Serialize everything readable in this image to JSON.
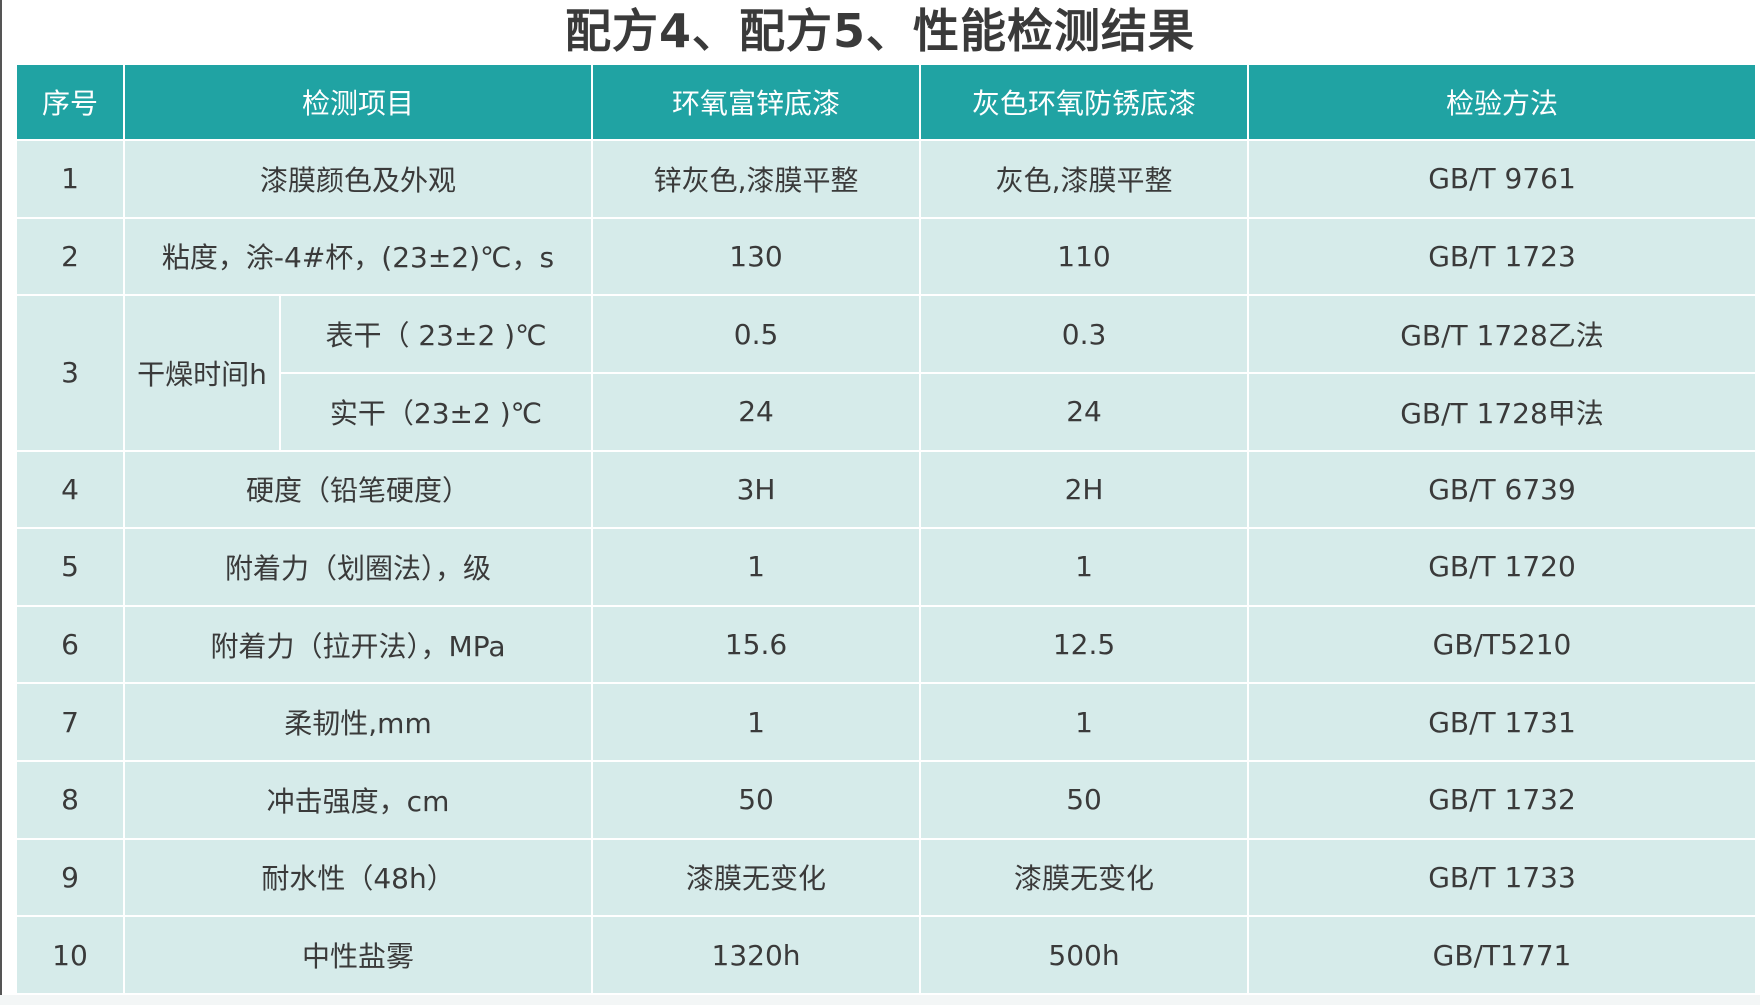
{
  "title": "配方4、配方5、性能检测结果",
  "headers": {
    "no": "序号",
    "item": "检测项目",
    "coat_a": "环氧富锌底漆",
    "coat_b": "灰色环氧防锈底漆",
    "method": "检验方法"
  },
  "rows": [
    {
      "no": "1",
      "item": "漆膜颜色及外观",
      "a": "锌灰色,漆膜平整",
      "b": "灰色,漆膜平整",
      "method": "GB/T 9761"
    },
    {
      "no": "2",
      "item": "粘度，涂-4#杯，(23±2)℃，s",
      "a": "130",
      "b": "110",
      "method": "GB/T 1723"
    },
    {
      "no": "3",
      "item": "干燥时间h",
      "sub1": "表干（ 23±2 )℃",
      "a1": "0.5",
      "b1": "0.3",
      "method1": "GB/T 1728乙法",
      "sub2": "实干（23±2 )℃",
      "a2": "24",
      "b2": "24",
      "method2": "GB/T 1728甲法"
    },
    {
      "no": "4",
      "item": "硬度（铅笔硬度）",
      "a": "3H",
      "b": "2H",
      "method": "GB/T 6739"
    },
    {
      "no": "5",
      "item": "附着力（划圈法），级",
      "a": "1",
      "b": "1",
      "method": "GB/T 1720"
    },
    {
      "no": "6",
      "item": "附着力（拉开法），MPa",
      "a": "15.6",
      "b": "12.5",
      "method": "GB/T5210"
    },
    {
      "no": "7",
      "item": "柔韧性,mm",
      "a": "1",
      "b": "1",
      "method": "GB/T 1731"
    },
    {
      "no": "8",
      "item": "冲击强度，cm",
      "a": "50",
      "b": "50",
      "method": "GB/T 1732"
    },
    {
      "no": "9",
      "item": "耐水性（48h）",
      "a": "漆膜无变化",
      "b": "漆膜无变化",
      "method": "GB/T 1733"
    },
    {
      "no": "10",
      "item": "中性盐雾",
      "a": "1320h",
      "b": "500h",
      "method": "GB/T1771"
    }
  ],
  "colors": {
    "header_bg": "#20a3a3",
    "cell_bg": "#d6ebea",
    "grid": "#ffffff"
  }
}
